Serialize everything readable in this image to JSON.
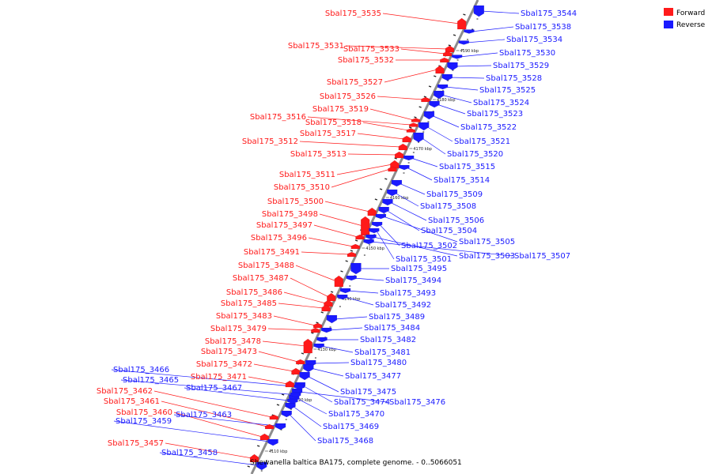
{
  "caption": "Shewanella baltica BA175, complete genome. - 0..5066051",
  "legend": {
    "forward": {
      "label": "Forward",
      "color": "#ff1a1a"
    },
    "reverse": {
      "label": "Reverse",
      "color": "#1a1aff"
    }
  },
  "ticks": [
    "4110 kbp",
    "4120 kbp",
    "4130 kbp",
    "4140 kbp",
    "4150 kbp",
    "4160 kbp",
    "4170 kbp",
    "4180 kbp",
    "4190 kbp"
  ],
  "genes_forward": [
    "Sbal175_3535",
    "Sbal175_3531",
    "Sbal175_3533",
    "Sbal175_3532",
    "Sbal175_3527",
    "Sbal175_3526",
    "Sbal175_3519",
    "Sbal175_3516",
    "Sbal175_3518",
    "Sbal175_3517",
    "Sbal175_3512",
    "Sbal175_3513",
    "Sbal175_3511",
    "Sbal175_3510",
    "Sbal175_3500",
    "Sbal175_3498",
    "Sbal175_3497",
    "Sbal175_3496",
    "Sbal175_3491",
    "Sbal175_3488",
    "Sbal175_3487",
    "Sbal175_3486",
    "Sbal175_3485",
    "Sbal175_3483",
    "Sbal175_3479",
    "Sbal175_3478",
    "Sbal175_3473",
    "Sbal175_3472",
    "Sbal175_3471",
    "Sbal175_3462",
    "Sbal175_3461",
    "Sbal175_3460",
    "Sbal175_3457"
  ],
  "genes_reverse": [
    "Sbal175_3544",
    "Sbal175_3538",
    "Sbal175_3534",
    "Sbal175_3530",
    "Sbal175_3529",
    "Sbal175_3528",
    "Sbal175_3525",
    "Sbal175_3524",
    "Sbal175_3523",
    "Sbal175_3522",
    "Sbal175_3521",
    "Sbal175_3520",
    "Sbal175_3515",
    "Sbal175_3514",
    "Sbal175_3509",
    "Sbal175_3508",
    "Sbal175_3506",
    "Sbal175_3504",
    "Sbal175_3505",
    "Sbal175_3502",
    "Sbal175_3501",
    "Sbal175_3503",
    "Sbal175_3507",
    "Sbal175_3495",
    "Sbal175_3494",
    "Sbal175_3493",
    "Sbal175_3492",
    "Sbal175_3489",
    "Sbal175_3484",
    "Sbal175_3482",
    "Sbal175_3481",
    "Sbal175_3480",
    "Sbal175_3477",
    "Sbal175_3475",
    "Sbal175_3474",
    "Sbal175_3476",
    "Sbal175_3470",
    "Sbal175_3469",
    "Sbal175_3468",
    "Sbal175_3466",
    "Sbal175_3465",
    "Sbal175_3467",
    "Sbal175_3463",
    "Sbal175_3459",
    "Sbal175_3458"
  ]
}
